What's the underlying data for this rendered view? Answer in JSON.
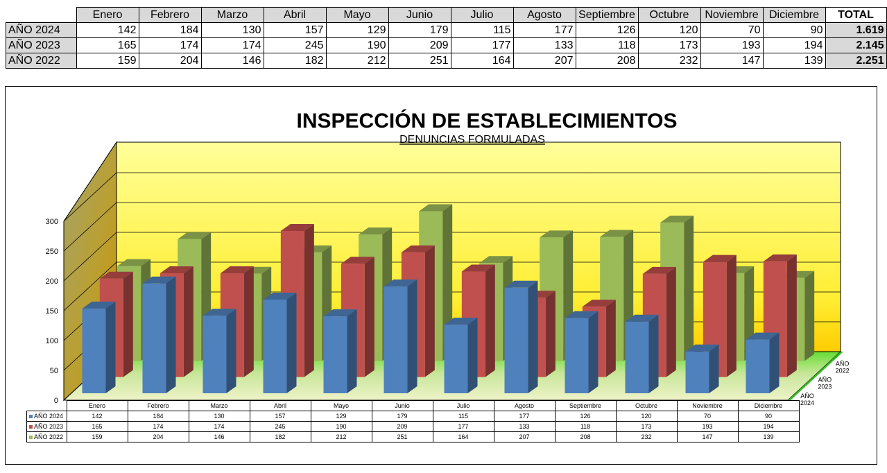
{
  "summary": {
    "months": [
      "Enero",
      "Febrero",
      "Marzo",
      "Abril",
      "Mayo",
      "Junio",
      "Julio",
      "Agosto",
      "Septiembre",
      "Octubre",
      "Noviembre",
      "Diciembre"
    ],
    "total_header": "TOTAL",
    "rows": [
      {
        "label": "AÑO 2024",
        "values": [
          "142",
          "184",
          "130",
          "157",
          "129",
          "179",
          "115",
          "177",
          "126",
          "120",
          "70",
          "90"
        ],
        "total": "1.619"
      },
      {
        "label": "AÑO 2023",
        "values": [
          "165",
          "174",
          "174",
          "245",
          "190",
          "209",
          "177",
          "133",
          "118",
          "173",
          "193",
          "194"
        ],
        "total": "2.145"
      },
      {
        "label": "AÑO 2022",
        "values": [
          "159",
          "204",
          "146",
          "182",
          "212",
          "251",
          "164",
          "207",
          "208",
          "232",
          "147",
          "139"
        ],
        "total": "2.251"
      }
    ]
  },
  "chart_data": {
    "type": "bar",
    "title": "INSPECCIÓN DE ESTABLECIMIENTOS",
    "subtitle": "DENUNCIAS FORMULADAS",
    "categories": [
      "Enero",
      "Febrero",
      "Marzo",
      "Abril",
      "Mayo",
      "Junio",
      "Julio",
      "Agosto",
      "Septiembre",
      "Octubre",
      "Noviembre",
      "Diciembre"
    ],
    "series": [
      {
        "name": "AÑO 2024",
        "color": "#4f81bd",
        "values": [
          142,
          184,
          130,
          157,
          129,
          179,
          115,
          177,
          126,
          120,
          70,
          90
        ]
      },
      {
        "name": "AÑO 2023",
        "color": "#c0504d",
        "values": [
          165,
          174,
          174,
          245,
          190,
          209,
          177,
          133,
          118,
          173,
          193,
          194
        ]
      },
      {
        "name": "AÑO 2022",
        "color": "#9bbb59",
        "values": [
          159,
          204,
          146,
          182,
          212,
          251,
          164,
          207,
          208,
          232,
          147,
          139
        ]
      }
    ],
    "yticks": [
      0,
      50,
      100,
      150,
      200,
      250,
      300
    ],
    "ylim": [
      0,
      300
    ],
    "grid": true,
    "depth_axis_labels": [
      [
        "AÑO",
        "2024"
      ],
      [
        "AÑO",
        "2023"
      ],
      [
        "AÑO",
        "2022"
      ]
    ],
    "data_table_below": true
  }
}
